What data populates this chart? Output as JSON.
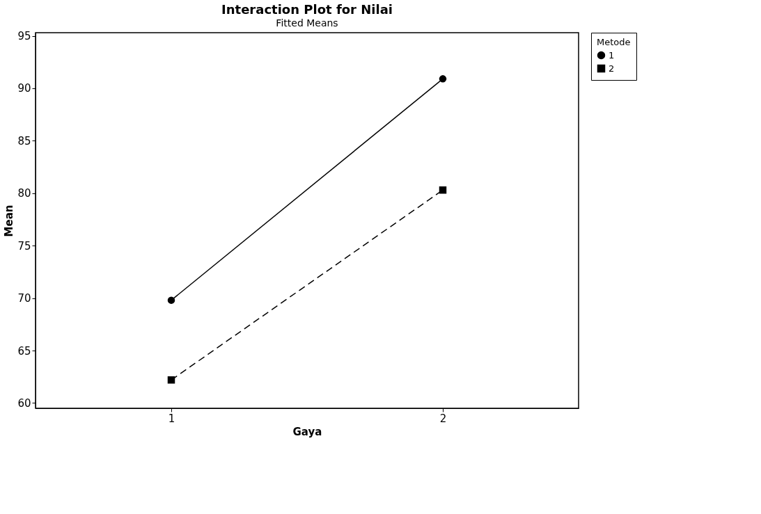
{
  "chart_data": {
    "type": "line",
    "title": "Interaction Plot for Nilai",
    "subtitle": "Fitted Means",
    "xlabel": "Gaya",
    "ylabel": "Mean",
    "legend_title": "Metode",
    "categories": [
      "1",
      "2"
    ],
    "series": [
      {
        "name": "1",
        "color": "#000000",
        "values": [
          69.8,
          90.9
        ],
        "marker": "circle",
        "line_style": "solid"
      },
      {
        "name": "2",
        "color": "#000000",
        "values": [
          62.2,
          80.3
        ],
        "marker": "square",
        "line_style": "dashed"
      }
    ],
    "ylim": [
      59.5,
      95.3
    ],
    "yticks": [
      60,
      65,
      70,
      75,
      80,
      85,
      90,
      95
    ],
    "grid": false,
    "legend": "top right"
  }
}
